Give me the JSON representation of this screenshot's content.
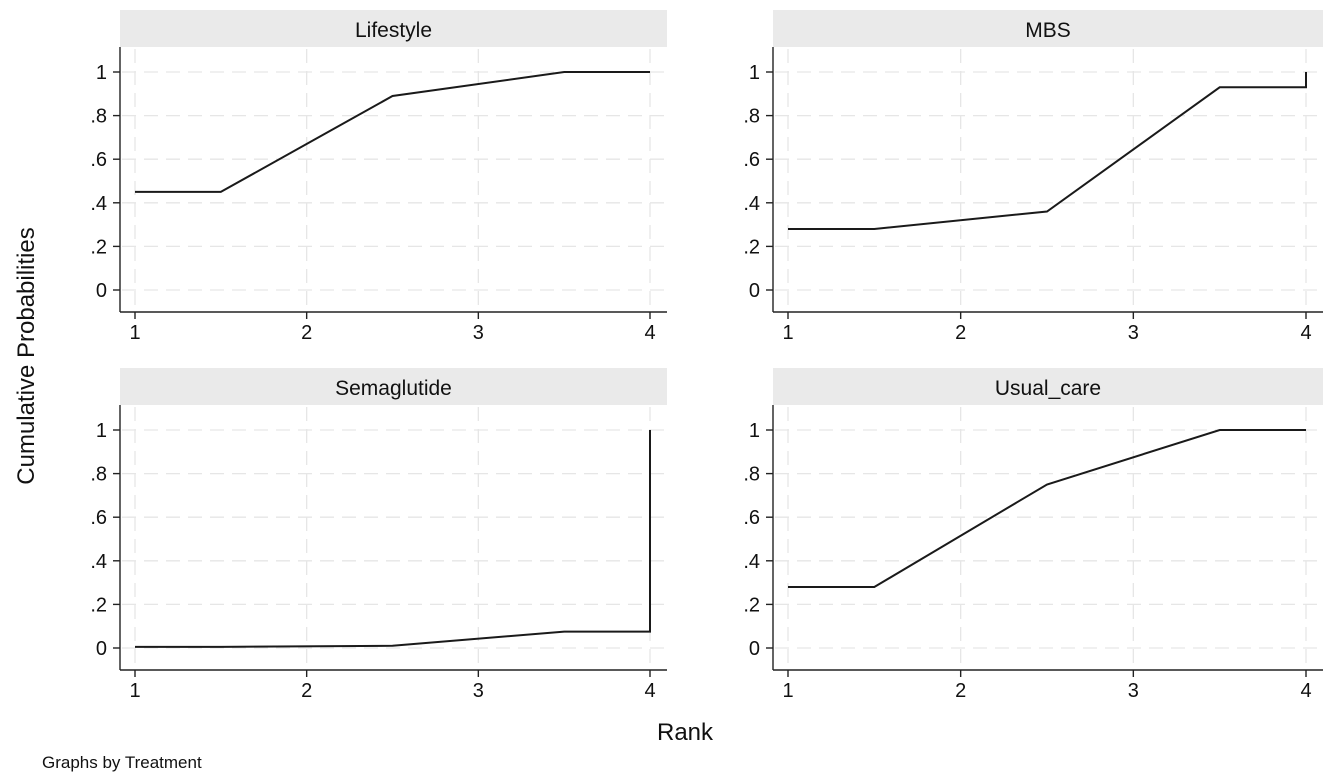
{
  "chart_data": {
    "type": "line",
    "xlabel": "Rank",
    "ylabel": "Cumulative Probabilities",
    "note": "Graphs by Treatment",
    "xlim": [
      1,
      4
    ],
    "ylim": [
      0,
      1
    ],
    "xticks": [
      1,
      2,
      3,
      4
    ],
    "yticks": [
      0,
      0.2,
      0.4,
      0.6,
      0.8,
      1
    ],
    "xtick_labels": [
      "1",
      "2",
      "3",
      "4"
    ],
    "ytick_labels": [
      "0",
      ".2",
      ".4",
      ".6",
      ".8",
      "1"
    ],
    "grid": true,
    "panels": [
      {
        "title": "Lifestyle",
        "x": [
          1,
          1.5,
          2.5,
          3.5,
          4
        ],
        "y": [
          0.45,
          0.45,
          0.89,
          1.0,
          1.0
        ]
      },
      {
        "title": "MBS",
        "x": [
          1,
          1.5,
          2.5,
          3.5,
          4,
          4
        ],
        "y": [
          0.28,
          0.28,
          0.36,
          0.93,
          0.93,
          1.0
        ]
      },
      {
        "title": "Semaglutide",
        "x": [
          1,
          1.5,
          2.5,
          3.5,
          4,
          4
        ],
        "y": [
          0.005,
          0.005,
          0.01,
          0.075,
          0.075,
          1.0
        ]
      },
      {
        "title": "Usual_care",
        "x": [
          1,
          1.5,
          2.5,
          3.5,
          4
        ],
        "y": [
          0.28,
          0.28,
          0.75,
          1.0,
          1.0
        ]
      }
    ]
  },
  "colors": {
    "title_bar": "#eaeaea",
    "grid": "#e6e6e6",
    "line": "#1a1a1a",
    "axis": "#222222"
  }
}
